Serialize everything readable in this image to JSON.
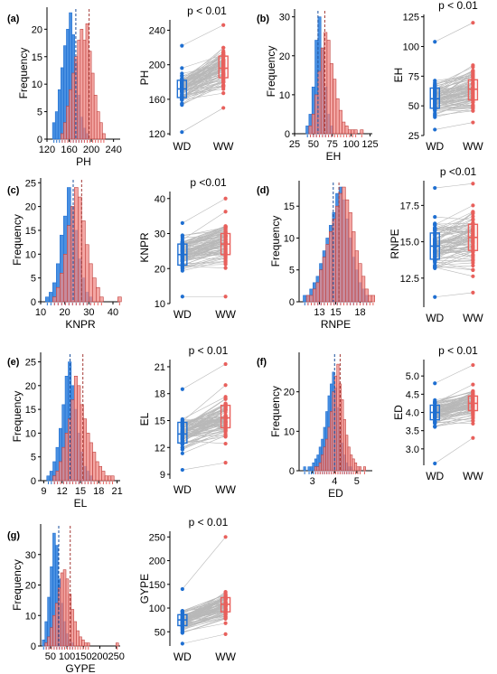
{
  "colors": {
    "wd": "#1f6fd1",
    "ww": "#e8605c",
    "wd_fill": "#3f8ae0",
    "ww_fill": "#f08a86",
    "line": "#b8b8b8"
  },
  "chart_data": [
    {
      "type": "histogram",
      "panel": "(a)",
      "xlabel": "PH",
      "ylabel": "Frequency",
      "xlim": [
        120,
        252
      ],
      "ylim": [
        0,
        24
      ],
      "xticks": [
        "120",
        "160",
        "200",
        "240"
      ],
      "xtick_values": [
        120,
        160,
        200,
        240
      ],
      "yticks": [
        "0",
        "5",
        "10",
        "15",
        "20"
      ],
      "ytick_values": [
        0,
        5,
        10,
        15,
        20
      ],
      "bin_start": 130,
      "bin_width": 5,
      "series": [
        {
          "name": "WD",
          "values": [
            3,
            5,
            9,
            13,
            17,
            20,
            23,
            19,
            14,
            8,
            4,
            2,
            1,
            0,
            0,
            0,
            0,
            0,
            0,
            0,
            0,
            0
          ]
        },
        {
          "name": "WW",
          "values": [
            0,
            0,
            0,
            1,
            3,
            6,
            9,
            12,
            15,
            18,
            20,
            18,
            21,
            16,
            12,
            8,
            5,
            3,
            1,
            0,
            0,
            0
          ]
        }
      ],
      "means": [
        172,
        196
      ]
    },
    {
      "type": "paired",
      "panel": "",
      "ylabel": "PH",
      "annotation": "p < 0.01",
      "categories": [
        "WD",
        "WW"
      ],
      "ylim": [
        118,
        252
      ],
      "yticks": [
        "120",
        "160",
        "200",
        "240"
      ],
      "ytick_values": [
        120,
        160,
        200,
        240
      ],
      "box": [
        {
          "q1": 162,
          "median": 172,
          "q3": 182,
          "min": 122,
          "max": 222
        },
        {
          "q1": 185,
          "median": 196,
          "q3": 210,
          "min": 150,
          "max": 246
        }
      ]
    },
    {
      "type": "histogram",
      "panel": "(b)",
      "xlabel": "EH",
      "ylabel": "Frequency",
      "xlim": [
        25,
        128
      ],
      "ylim": [
        0,
        32
      ],
      "xticks": [
        "25",
        "50",
        "75",
        "100",
        "125"
      ],
      "xtick_values": [
        25,
        50,
        75,
        100,
        125
      ],
      "yticks": [
        "0",
        "10",
        "20",
        "30"
      ],
      "ytick_values": [
        0,
        10,
        20,
        30
      ],
      "bin_start": 40,
      "bin_width": 4,
      "series": [
        {
          "name": "WD",
          "values": [
            2,
            5,
            12,
            24,
            30,
            22,
            12,
            5,
            2,
            0,
            0,
            0,
            0,
            0,
            0,
            0,
            0,
            0,
            0,
            0
          ]
        },
        {
          "name": "WW",
          "values": [
            0,
            2,
            5,
            10,
            16,
            22,
            26,
            24,
            18,
            14,
            9,
            6,
            3,
            2,
            1,
            1,
            1,
            0,
            1,
            0
          ]
        }
      ],
      "means": [
        56,
        65
      ]
    },
    {
      "type": "paired",
      "panel": "",
      "ylabel": "EH",
      "annotation": "p < 0.01",
      "categories": [
        "WD",
        "WW"
      ],
      "ylim": [
        25,
        127
      ],
      "yticks": [
        "25",
        "50",
        "75",
        "100",
        "125"
      ],
      "ytick_values": [
        25,
        50,
        75,
        100,
        125
      ],
      "box": [
        {
          "q1": 48,
          "median": 56,
          "q3": 65,
          "min": 30,
          "max": 104
        },
        {
          "q1": 55,
          "median": 64,
          "q3": 72,
          "min": 36,
          "max": 120
        }
      ]
    },
    {
      "type": "histogram",
      "panel": "(c)",
      "xlabel": "KNPR",
      "ylabel": "Frequency",
      "xlim": [
        10,
        43
      ],
      "ylim": [
        0,
        26
      ],
      "xticks": [
        "10",
        "20",
        "30",
        "40"
      ],
      "xtick_values": [
        10,
        20,
        30,
        40
      ],
      "yticks": [
        "0",
        "5",
        "10",
        "15",
        "20",
        "25"
      ],
      "ytick_values": [
        0,
        5,
        10,
        15,
        20,
        25
      ],
      "bin_start": 12,
      "bin_width": 1.5,
      "series": [
        {
          "name": "WD",
          "values": [
            1,
            2,
            4,
            8,
            14,
            18,
            24,
            20,
            15,
            9,
            5,
            2,
            1,
            0,
            0,
            0,
            0,
            0,
            0,
            0,
            0
          ]
        },
        {
          "name": "WW",
          "values": [
            0,
            0,
            1,
            3,
            6,
            10,
            16,
            20,
            24,
            22,
            17,
            12,
            8,
            5,
            3,
            1,
            0,
            0,
            0,
            0,
            1
          ]
        }
      ],
      "means": [
        23.5,
        27
      ]
    },
    {
      "type": "paired",
      "panel": "",
      "ylabel": "KNPR",
      "annotation": "p <0.01",
      "categories": [
        "WD",
        "WW"
      ],
      "ylim": [
        10,
        42
      ],
      "yticks": [
        "10",
        "20",
        "30",
        "40"
      ],
      "ytick_values": [
        10,
        20,
        30,
        40
      ],
      "box": [
        {
          "q1": 21,
          "median": 24,
          "q3": 27,
          "min": 12,
          "max": 33
        },
        {
          "q1": 24,
          "median": 27,
          "q3": 30,
          "min": 12,
          "max": 40
        }
      ]
    },
    {
      "type": "histogram",
      "panel": "(d)",
      "xlabel": "RNPE",
      "ylabel": "Frequency",
      "xlim": [
        10.5,
        19.5
      ],
      "ylim": [
        0,
        19
      ],
      "xticks": [
        "13",
        "15",
        "18"
      ],
      "xtick_values": [
        13,
        15,
        18
      ],
      "yticks": [
        "0",
        "5",
        "10",
        "15"
      ],
      "ytick_values": [
        0,
        5,
        10,
        15
      ],
      "bin_start": 11,
      "bin_width": 0.4,
      "series": [
        {
          "name": "WD",
          "values": [
            1,
            1,
            2,
            3,
            4,
            6,
            8,
            10,
            12,
            14,
            17,
            18,
            16,
            13,
            10,
            7,
            5,
            3,
            2,
            1,
            0,
            0
          ]
        },
        {
          "name": "WW",
          "values": [
            0,
            1,
            1,
            2,
            3,
            5,
            7,
            9,
            11,
            13,
            15,
            17,
            18,
            16,
            14,
            11,
            8,
            6,
            4,
            2,
            1,
            1
          ]
        }
      ],
      "means": [
        14.7,
        15.4
      ]
    },
    {
      "type": "paired",
      "panel": "",
      "ylabel": "RNPE",
      "annotation": "p <0.01",
      "categories": [
        "WD",
        "WW"
      ],
      "ylim": [
        10.5,
        19.2
      ],
      "yticks": [
        "12.5",
        "15.0",
        "17.5"
      ],
      "ytick_values": [
        12.5,
        15.0,
        17.5
      ],
      "box": [
        {
          "q1": 13.8,
          "median": 14.7,
          "q3": 15.6,
          "min": 11.2,
          "max": 18.7
        },
        {
          "q1": 14.4,
          "median": 15.3,
          "q3": 16.2,
          "min": 11.5,
          "max": 19.0
        }
      ]
    },
    {
      "type": "histogram",
      "panel": "(e)",
      "xlabel": "EL",
      "ylabel": "Frequency",
      "xlim": [
        8.5,
        21.5
      ],
      "ylim": [
        0,
        27
      ],
      "xticks": [
        "9",
        "12",
        "15",
        "18",
        "21"
      ],
      "xtick_values": [
        9,
        12,
        15,
        18,
        21
      ],
      "yticks": [
        "0",
        "5",
        "10",
        "15",
        "20",
        "25"
      ],
      "ytick_values": [
        0,
        5,
        10,
        15,
        20,
        25
      ],
      "bin_start": 9.5,
      "bin_width": 0.5,
      "series": [
        {
          "name": "WD",
          "values": [
            1,
            2,
            4,
            7,
            11,
            16,
            22,
            25,
            20,
            15,
            10,
            6,
            3,
            2,
            1,
            0,
            0,
            0,
            0,
            0,
            0,
            0
          ]
        },
        {
          "name": "WW",
          "values": [
            0,
            0,
            1,
            2,
            4,
            7,
            10,
            13,
            17,
            22,
            20,
            16,
            13,
            10,
            8,
            6,
            4,
            3,
            2,
            1,
            1,
            1
          ]
        }
      ],
      "means": [
        13.3,
        15.4
      ]
    },
    {
      "type": "paired",
      "panel": "",
      "ylabel": "EL",
      "annotation": "p < 0.01",
      "categories": [
        "WD",
        "WW"
      ],
      "ylim": [
        8.5,
        21.8
      ],
      "yticks": [
        "9",
        "12",
        "15",
        "18",
        "21"
      ],
      "ytick_values": [
        9,
        12,
        15,
        18,
        21
      ],
      "box": [
        {
          "q1": 12.5,
          "median": 13.5,
          "q3": 14.8,
          "min": 9.5,
          "max": 18.5
        },
        {
          "q1": 14.2,
          "median": 15.3,
          "q3": 16.7,
          "min": 10.3,
          "max": 21.3
        }
      ]
    },
    {
      "type": "histogram",
      "panel": "(f)",
      "xlabel": "ED",
      "ylabel": "Frequency",
      "xlim": [
        2.4,
        5.7
      ],
      "ylim": [
        0,
        30
      ],
      "xticks": [
        "3",
        "4",
        "5"
      ],
      "xtick_values": [
        3,
        4,
        5
      ],
      "yticks": [
        "0",
        "10",
        "20"
      ],
      "ytick_values": [
        0,
        10,
        20
      ],
      "bin_start": 2.6,
      "bin_width": 0.1,
      "series": [
        {
          "name": "WD",
          "values": [
            1,
            0,
            1,
            1,
            2,
            3,
            4,
            6,
            8,
            11,
            15,
            19,
            22,
            25,
            21,
            16,
            11,
            7,
            4,
            2,
            1,
            1,
            0,
            0,
            0,
            0,
            0,
            0,
            0
          ]
        },
        {
          "name": "WW",
          "values": [
            0,
            0,
            0,
            0,
            0,
            1,
            1,
            2,
            4,
            6,
            8,
            11,
            15,
            20,
            24,
            27,
            22,
            18,
            13,
            9,
            6,
            4,
            3,
            2,
            1,
            1,
            0,
            1,
            0
          ]
        }
      ],
      "means": [
        4.0,
        4.25
      ]
    },
    {
      "type": "paired",
      "panel": "",
      "ylabel": "ED",
      "annotation": "p < 0.01",
      "categories": [
        "WD",
        "WW"
      ],
      "ylim": [
        2.55,
        5.45
      ],
      "yticks": [
        "3.0",
        "3.5",
        "4.0",
        "4.5",
        "5.0"
      ],
      "ytick_values": [
        3.0,
        3.5,
        4.0,
        4.5,
        5.0
      ],
      "box": [
        {
          "q1": 3.8,
          "median": 4.0,
          "q3": 4.2,
          "min": 2.6,
          "max": 4.8
        },
        {
          "q1": 4.05,
          "median": 4.25,
          "q3": 4.45,
          "min": 3.3,
          "max": 5.3
        }
      ]
    },
    {
      "type": "histogram",
      "panel": "(g)",
      "xlabel": "GYPE",
      "ylabel": "Frequency",
      "xlim": [
        20,
        262
      ],
      "ylim": [
        0,
        40
      ],
      "xticks": [
        "50",
        "100",
        "150",
        "200",
        "250"
      ],
      "xtick_values": [
        50,
        100,
        150,
        200,
        250
      ],
      "yticks": [
        "0",
        "10",
        "20",
        "30"
      ],
      "ytick_values": [
        0,
        10,
        20,
        30
      ],
      "bin_start": 25,
      "bin_width": 8,
      "series": [
        {
          "name": "WD",
          "values": [
            2,
            8,
            16,
            26,
            37,
            33,
            22,
            14,
            8,
            4,
            2,
            1,
            0,
            0,
            0,
            0,
            0,
            0,
            0,
            0,
            0,
            0,
            0,
            0,
            0,
            0,
            0,
            0,
            0
          ]
        },
        {
          "name": "WW",
          "values": [
            0,
            1,
            3,
            6,
            10,
            14,
            19,
            24,
            25,
            22,
            17,
            12,
            8,
            5,
            3,
            2,
            1,
            1,
            0,
            0,
            0,
            0,
            0,
            0,
            0,
            0,
            0,
            0,
            1
          ]
        }
      ],
      "means": [
        75,
        110
      ]
    },
    {
      "type": "paired",
      "panel": "",
      "ylabel": "GYPE",
      "annotation": "p < 0.01",
      "categories": [
        "WD",
        "WW"
      ],
      "ylim": [
        20,
        262
      ],
      "yticks": [
        "50",
        "100",
        "150",
        "200",
        "250"
      ],
      "ytick_values": [
        50,
        100,
        150,
        200,
        250
      ],
      "box": [
        {
          "q1": 63,
          "median": 75,
          "q3": 86,
          "min": 25,
          "max": 140
        },
        {
          "q1": 92,
          "median": 108,
          "q3": 122,
          "min": 45,
          "max": 250
        }
      ]
    }
  ]
}
